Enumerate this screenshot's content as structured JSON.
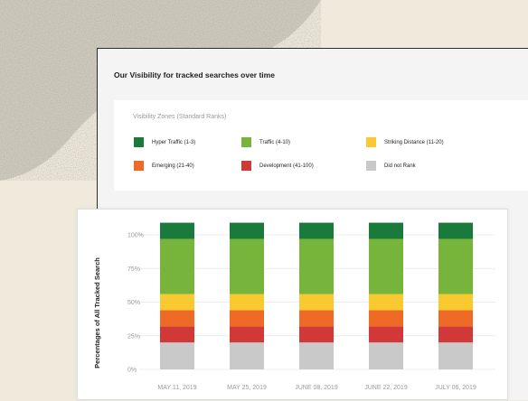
{
  "panel": {
    "title": "Our Visibility for tracked searches over time"
  },
  "legend": {
    "caption": "Visibility Zones (Standard Ranks)",
    "items": [
      {
        "label": "Hyper Traffic (1-3)",
        "color": "#1a7a3c"
      },
      {
        "label": "Traffic (4-10)",
        "color": "#76b43c"
      },
      {
        "label": "Striking Distance (11-20)",
        "color": "#f9c930"
      },
      {
        "label": "Emerging (21-40)",
        "color": "#ef6a25"
      },
      {
        "label": "Development (41-100)",
        "color": "#d13838"
      },
      {
        "label": "Did not Rank",
        "color": "#c9c9c9"
      }
    ]
  },
  "chart_data": {
    "type": "bar",
    "stacked": true,
    "title": "",
    "xlabel": "",
    "ylabel": "Percentages of All Tracked Search",
    "categories": [
      "MAY 11, 2019",
      "MAY 25, 2019",
      "JUNE 08, 2019",
      "JUNE 22, 2019",
      "JULY 06, 2019"
    ],
    "ylim": [
      0,
      100
    ],
    "yticks": [
      "0%",
      "25%",
      "50%",
      "75%",
      "100%"
    ],
    "grid": true,
    "series": [
      {
        "name": "Did not Rank",
        "color": "#c9c9c9",
        "values": [
          20,
          20,
          20,
          20,
          20
        ]
      },
      {
        "name": "Development (41-100)",
        "color": "#d13838",
        "values": [
          12,
          12,
          12,
          12,
          12
        ]
      },
      {
        "name": "Emerging (21-40)",
        "color": "#ef6a25",
        "values": [
          12,
          12,
          12,
          12,
          12
        ]
      },
      {
        "name": "Striking Distance (11-20)",
        "color": "#f9c930",
        "values": [
          12,
          12,
          12,
          12,
          12
        ]
      },
      {
        "name": "Traffic (4-10)",
        "color": "#76b43c",
        "values": [
          41,
          41,
          41,
          41,
          41
        ]
      },
      {
        "name": "Hyper Traffic (1-3)",
        "color": "#1a7a3c",
        "values": [
          12,
          12,
          12,
          12,
          12
        ]
      }
    ]
  }
}
